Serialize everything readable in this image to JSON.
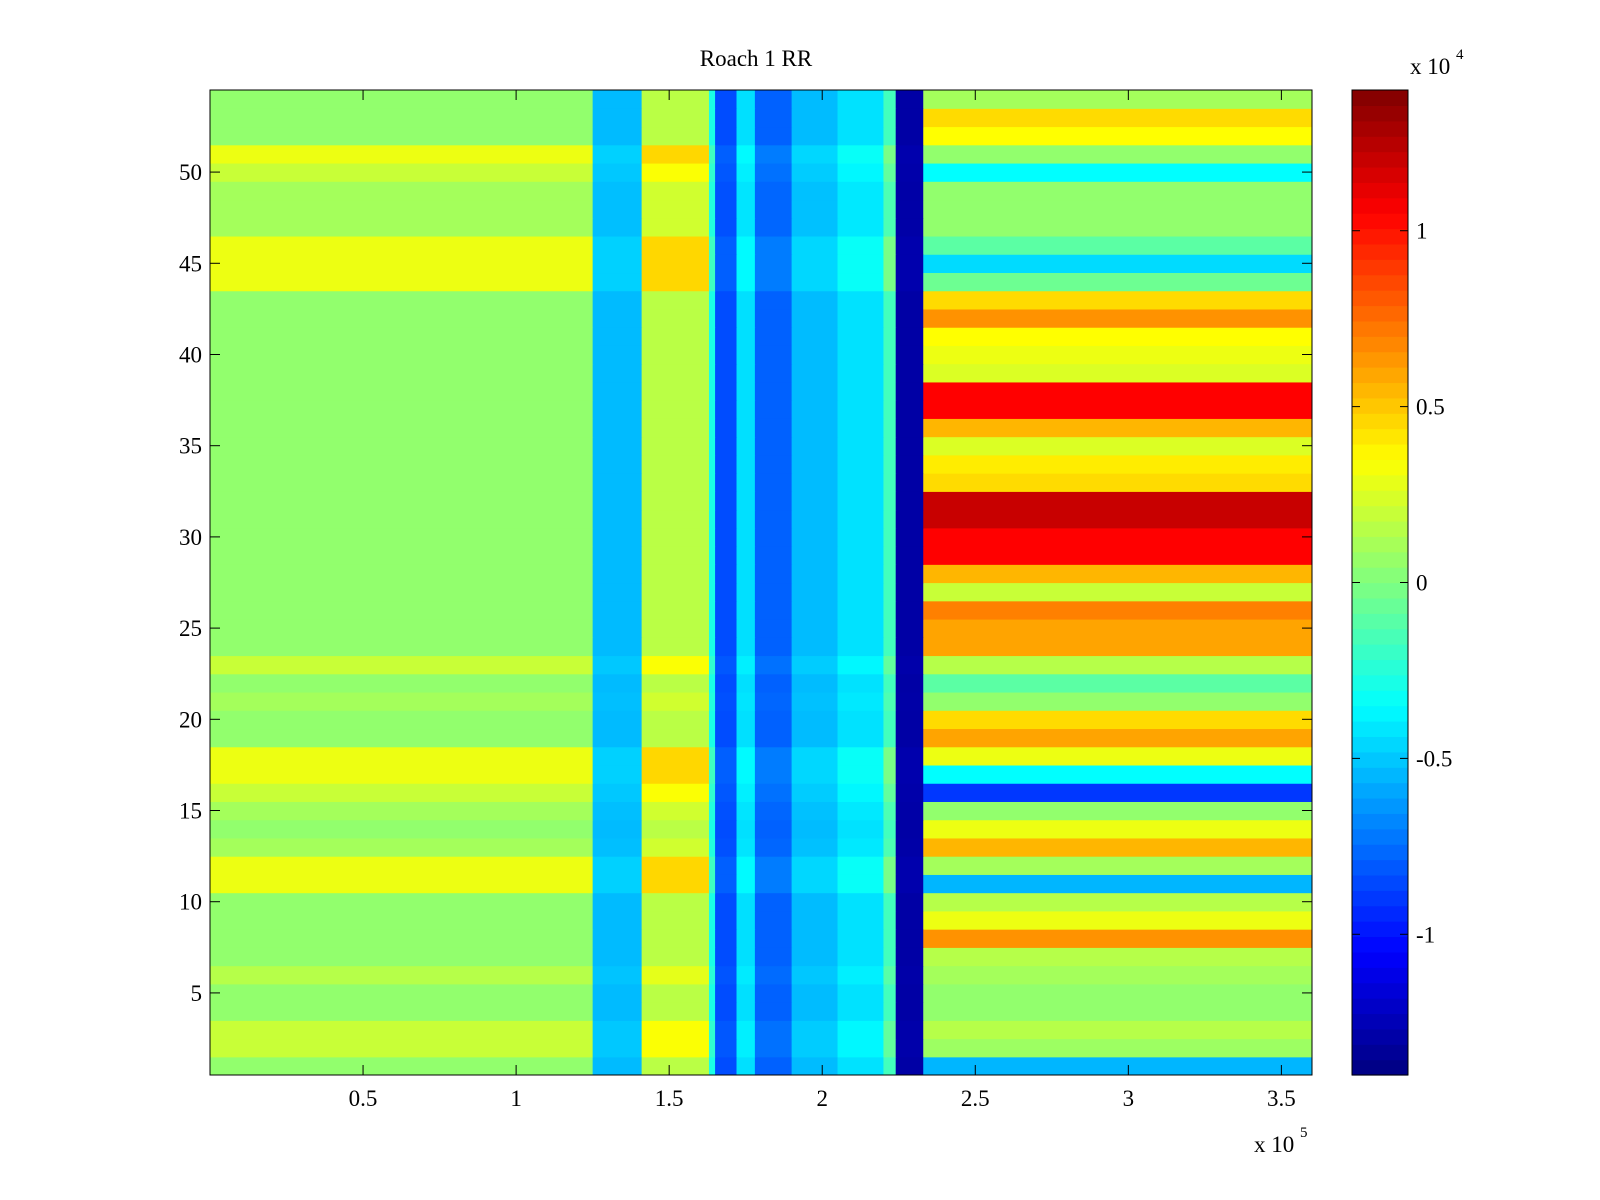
{
  "chart_data": {
    "type": "heatmap",
    "title": "Roach 1 RR",
    "xlabel": "",
    "ylabel": "",
    "x_multiplier_label": "x 10",
    "x_multiplier_exp": "5",
    "x_ticks": [
      0.5,
      1,
      1.5,
      2,
      2.5,
      3,
      3.5
    ],
    "x_tick_labels": [
      "0.5",
      "1",
      "1.5",
      "2",
      "2.5",
      "3",
      "3.5"
    ],
    "xlim": [
      0,
      3.6
    ],
    "y_ticks": [
      5,
      10,
      15,
      20,
      25,
      30,
      35,
      40,
      45,
      50
    ],
    "y_tick_labels": [
      "5",
      "10",
      "15",
      "20",
      "25",
      "30",
      "35",
      "40",
      "45",
      "50"
    ],
    "ylim": [
      0.5,
      54.5
    ],
    "rows": 54,
    "colorbar": {
      "colormap": "jet",
      "clim": [
        -1.4,
        1.4
      ],
      "ticks": [
        -1,
        -0.5,
        0,
        0.5,
        1
      ],
      "tick_labels": [
        "-1",
        "-0.5",
        "0",
        "0.5",
        "1"
      ],
      "multiplier_label": "x 10",
      "multiplier_exp": "4"
    },
    "column_regions": [
      {
        "x": [
          0.0,
          1.25
        ],
        "base": 0.0,
        "row_gain": 1.0
      },
      {
        "x": [
          1.25,
          1.41
        ],
        "base": -0.55,
        "row_gain": 0.25
      },
      {
        "x": [
          1.41,
          1.63
        ],
        "base": 0.1,
        "row_gain": 1.2
      },
      {
        "x": [
          1.63,
          1.65
        ],
        "base": -0.3,
        "row_gain": 0.4
      },
      {
        "x": [
          1.65,
          1.72
        ],
        "base": -0.85,
        "row_gain": 0.2
      },
      {
        "x": [
          1.72,
          1.78
        ],
        "base": -0.45,
        "row_gain": 0.3
      },
      {
        "x": [
          1.78,
          1.9
        ],
        "base": -0.8,
        "row_gain": 0.3
      },
      {
        "x": [
          1.9,
          2.05
        ],
        "base": -0.55,
        "row_gain": 0.3
      },
      {
        "x": [
          2.05,
          2.2
        ],
        "base": -0.45,
        "row_gain": 0.4
      },
      {
        "x": [
          2.2,
          2.24
        ],
        "base": -0.2,
        "row_gain": 0.6
      },
      {
        "x": [
          2.24,
          2.33
        ],
        "base": -1.3,
        "row_gain": 0.08
      },
      {
        "x": [
          2.33,
          3.6
        ],
        "base": 0.0,
        "row_gain": 2.6
      }
    ],
    "row_left_values": [
      0.05,
      0.2,
      0.2,
      0.05,
      0.05,
      0.15,
      0.05,
      0.05,
      0.05,
      0.05,
      0.3,
      0.3,
      0.1,
      0.05,
      0.1,
      0.2,
      0.3,
      0.3,
      0.05,
      0.05,
      0.1,
      0.05,
      0.2,
      0.05,
      0.05,
      0.05,
      0.05,
      0.05,
      0.05,
      0.05,
      0.05,
      0.05,
      0.05,
      0.05,
      0.05,
      0.05,
      0.05,
      0.05,
      0.05,
      0.05,
      0.05,
      0.05,
      0.05,
      0.3,
      0.3,
      0.3,
      0.1,
      0.1,
      0.1,
      0.2,
      0.3,
      0.05,
      0.05,
      0.05
    ],
    "row_right_values": [
      -0.55,
      0.08,
      0.15,
      0.05,
      0.05,
      0.1,
      0.15,
      0.65,
      0.3,
      0.15,
      -0.55,
      0.1,
      0.55,
      0.3,
      0.05,
      -0.9,
      -0.35,
      0.3,
      0.6,
      0.45,
      0.05,
      -0.1,
      0.15,
      0.6,
      0.6,
      0.7,
      0.2,
      0.55,
      1.05,
      1.05,
      1.2,
      1.2,
      0.45,
      0.4,
      0.25,
      0.55,
      1.05,
      1.05,
      0.25,
      0.3,
      0.35,
      0.65,
      0.45,
      -0.05,
      -0.45,
      -0.1,
      0.05,
      0.05,
      0.05,
      -0.35,
      0.05,
      0.35,
      0.45,
      0.1
    ]
  }
}
